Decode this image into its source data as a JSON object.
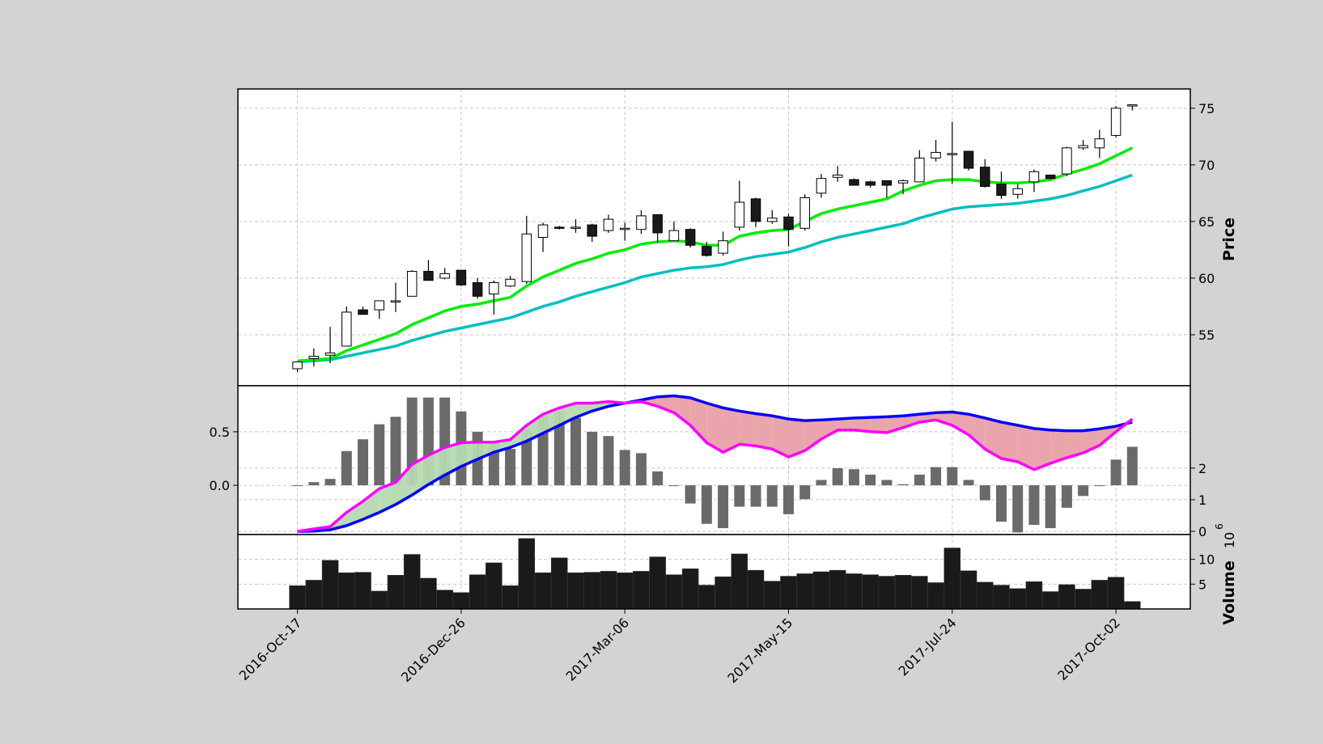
{
  "chart_data": {
    "type": "candlestick",
    "x": [
      "2016-Oct-17",
      "2016-Oct-24",
      "2016-Oct-31",
      "2016-Nov-07",
      "2016-Nov-14",
      "2016-Nov-21",
      "2016-Nov-28",
      "2016-Dec-05",
      "2016-Dec-12",
      "2016-Dec-19",
      "2016-Dec-26",
      "2017-Jan-02",
      "2017-Jan-09",
      "2017-Jan-16",
      "2017-Jan-23",
      "2017-Jan-30",
      "2017-Feb-06",
      "2017-Feb-13",
      "2017-Feb-20",
      "2017-Feb-27",
      "2017-Mar-06",
      "2017-Mar-13",
      "2017-Mar-20",
      "2017-Mar-27",
      "2017-Apr-03",
      "2017-Apr-10",
      "2017-Apr-17",
      "2017-Apr-24",
      "2017-May-01",
      "2017-May-08",
      "2017-May-15",
      "2017-May-22",
      "2017-May-29",
      "2017-Jun-05",
      "2017-Jun-12",
      "2017-Jun-19",
      "2017-Jun-26",
      "2017-Jul-03",
      "2017-Jul-10",
      "2017-Jul-17",
      "2017-Jul-24",
      "2017-Jul-31",
      "2017-Aug-07",
      "2017-Aug-14",
      "2017-Aug-21",
      "2017-Aug-28",
      "2017-Sep-04",
      "2017-Sep-11",
      "2017-Sep-18",
      "2017-Sep-25",
      "2017-Oct-02",
      "2017-Oct-09"
    ],
    "xticks": [
      "2016-Oct-17",
      "2016-Dec-26",
      "2017-Mar-06",
      "2017-May-15",
      "2017-Jul-24",
      "2017-Oct-02"
    ],
    "candles": [
      [
        52.0,
        52.6,
        51.7,
        52.6
      ],
      [
        52.9,
        53.8,
        52.2,
        53.1
      ],
      [
        53.2,
        55.7,
        52.5,
        53.4
      ],
      [
        54.0,
        57.5,
        54.0,
        57.0
      ],
      [
        57.2,
        57.5,
        56.8,
        56.8
      ],
      [
        57.2,
        58.0,
        56.4,
        58.0
      ],
      [
        57.9,
        59.6,
        57.0,
        58.0
      ],
      [
        58.4,
        60.7,
        58.4,
        60.6
      ],
      [
        60.6,
        61.6,
        59.8,
        59.8
      ],
      [
        60.0,
        60.9,
        59.9,
        60.4
      ],
      [
        60.7,
        60.7,
        59.3,
        59.4
      ],
      [
        59.6,
        60.0,
        58.2,
        58.4
      ],
      [
        58.6,
        59.8,
        56.8,
        59.6
      ],
      [
        59.3,
        60.2,
        59.2,
        59.9
      ],
      [
        59.7,
        65.5,
        59.5,
        63.9
      ],
      [
        63.6,
        64.9,
        62.3,
        64.7
      ],
      [
        64.5,
        64.6,
        64.3,
        64.4
      ],
      [
        64.4,
        65.2,
        64.0,
        64.5
      ],
      [
        64.7,
        64.8,
        63.2,
        63.7
      ],
      [
        64.2,
        65.6,
        64.0,
        65.2
      ],
      [
        64.4,
        64.9,
        63.3,
        64.4
      ],
      [
        64.3,
        66.0,
        63.9,
        65.5
      ],
      [
        65.6,
        65.6,
        63.1,
        64.0
      ],
      [
        63.3,
        65.0,
        63.3,
        64.2
      ],
      [
        64.3,
        64.4,
        62.7,
        62.9
      ],
      [
        62.8,
        63.2,
        61.9,
        62.0
      ],
      [
        62.2,
        64.1,
        62.0,
        63.3
      ],
      [
        64.5,
        68.6,
        64.2,
        66.7
      ],
      [
        67.0,
        67.1,
        64.5,
        65.0
      ],
      [
        65.0,
        66.0,
        64.8,
        65.3
      ],
      [
        65.4,
        65.7,
        62.8,
        64.3
      ],
      [
        64.4,
        67.4,
        64.2,
        67.1
      ],
      [
        67.5,
        69.2,
        67.1,
        68.8
      ],
      [
        68.9,
        69.9,
        68.5,
        69.1
      ],
      [
        68.7,
        68.8,
        68.2,
        68.2
      ],
      [
        68.5,
        68.6,
        68.0,
        68.2
      ],
      [
        68.6,
        68.6,
        67.1,
        68.2
      ],
      [
        68.4,
        68.7,
        67.4,
        68.6
      ],
      [
        68.5,
        71.3,
        68.5,
        70.6
      ],
      [
        70.6,
        72.2,
        70.3,
        71.1
      ],
      [
        71.0,
        73.8,
        68.3,
        71.0
      ],
      [
        71.2,
        71.2,
        69.5,
        69.7
      ],
      [
        69.8,
        70.5,
        68.0,
        68.1
      ],
      [
        68.3,
        69.4,
        67.0,
        67.3
      ],
      [
        67.4,
        68.3,
        67.0,
        67.9
      ],
      [
        68.5,
        69.6,
        67.6,
        69.4
      ],
      [
        69.1,
        69.1,
        68.7,
        68.8
      ],
      [
        69.2,
        71.6,
        69.0,
        71.5
      ],
      [
        71.5,
        72.2,
        71.3,
        71.7
      ],
      [
        71.5,
        73.1,
        70.6,
        72.3
      ],
      [
        72.6,
        75.2,
        72.4,
        75.0
      ],
      [
        75.3,
        75.3,
        74.8,
        75.3
      ]
    ],
    "ma_green": [
      52.7,
      52.8,
      52.9,
      53.6,
      54.1,
      54.6,
      55.1,
      55.9,
      56.5,
      57.1,
      57.5,
      57.7,
      58.0,
      58.3,
      59.3,
      60.1,
      60.7,
      61.3,
      61.7,
      62.2,
      62.5,
      63.0,
      63.2,
      63.3,
      63.2,
      62.9,
      62.9,
      63.7,
      64.0,
      64.2,
      64.3,
      65.0,
      65.7,
      66.1,
      66.4,
      66.7,
      67.0,
      67.7,
      68.2,
      68.6,
      68.7,
      68.7,
      68.5,
      68.4,
      68.4,
      68.5,
      68.7,
      69.2,
      69.6,
      70.1,
      70.8,
      71.5
    ],
    "ma_cyan": [
      52.6,
      52.7,
      52.8,
      53.1,
      53.4,
      53.7,
      54.0,
      54.5,
      54.9,
      55.3,
      55.6,
      55.9,
      56.2,
      56.5,
      57.0,
      57.5,
      57.9,
      58.4,
      58.8,
      59.2,
      59.6,
      60.1,
      60.4,
      60.7,
      60.9,
      61.0,
      61.2,
      61.6,
      61.9,
      62.1,
      62.3,
      62.7,
      63.2,
      63.6,
      63.9,
      64.2,
      64.5,
      64.8,
      65.3,
      65.7,
      66.1,
      66.3,
      66.4,
      66.5,
      66.6,
      66.8,
      67.0,
      67.3,
      67.7,
      68.1,
      68.6,
      69.1
    ],
    "macd": [
      0.0,
      0.08,
      0.15,
      0.6,
      0.95,
      1.35,
      1.55,
      2.12,
      2.4,
      2.65,
      2.8,
      2.82,
      2.82,
      2.9,
      3.35,
      3.7,
      3.9,
      4.05,
      4.05,
      4.1,
      4.05,
      4.1,
      3.95,
      3.75,
      3.35,
      2.8,
      2.5,
      2.75,
      2.7,
      2.6,
      2.35,
      2.55,
      2.92,
      3.2,
      3.2,
      3.15,
      3.12,
      3.28,
      3.45,
      3.52,
      3.35,
      3.05,
      2.6,
      2.3,
      2.2,
      1.95,
      2.15,
      2.33,
      2.48,
      2.72,
      3.15,
      3.55
    ],
    "signal": [
      0.0,
      0.01,
      0.05,
      0.18,
      0.38,
      0.6,
      0.85,
      1.15,
      1.48,
      1.78,
      2.05,
      2.28,
      2.5,
      2.65,
      2.85,
      3.1,
      3.35,
      3.6,
      3.8,
      3.95,
      4.05,
      4.15,
      4.25,
      4.28,
      4.22,
      4.05,
      3.9,
      3.8,
      3.72,
      3.65,
      3.55,
      3.5,
      3.52,
      3.55,
      3.58,
      3.6,
      3.62,
      3.65,
      3.7,
      3.75,
      3.77,
      3.7,
      3.58,
      3.45,
      3.35,
      3.25,
      3.2,
      3.18,
      3.18,
      3.24,
      3.32,
      3.45
    ],
    "macd_hist": [
      0.0,
      0.03,
      0.06,
      0.32,
      0.43,
      0.57,
      0.64,
      0.82,
      0.82,
      0.82,
      0.69,
      0.5,
      0.4,
      0.34,
      0.52,
      0.64,
      0.69,
      0.63,
      0.5,
      0.46,
      0.33,
      0.3,
      0.13,
      0.0,
      -0.17,
      -0.36,
      -0.4,
      -0.2,
      -0.2,
      -0.2,
      -0.27,
      -0.13,
      0.05,
      0.16,
      0.15,
      0.1,
      0.05,
      0.01,
      0.1,
      0.17,
      0.17,
      0.05,
      -0.14,
      -0.34,
      -0.44,
      -0.37,
      -0.4,
      -0.21,
      -0.1,
      0.0,
      0.24,
      0.36
    ],
    "volume": [
      4.7,
      5.8,
      9.8,
      7.3,
      7.4,
      3.6,
      6.8,
      11.0,
      6.2,
      3.8,
      3.3,
      6.9,
      9.3,
      4.7,
      14.2,
      7.3,
      10.3,
      7.3,
      7.4,
      7.6,
      7.3,
      7.6,
      10.5,
      6.9,
      8.1,
      4.8,
      6.5,
      11.1,
      7.8,
      5.6,
      6.6,
      7.1,
      7.5,
      7.8,
      7.1,
      6.9,
      6.6,
      6.8,
      6.6,
      5.3,
      12.3,
      7.7,
      5.4,
      4.8,
      4.1,
      5.5,
      3.5,
      4.9,
      4.0,
      5.8,
      6.4,
      1.5
    ],
    "ylabel_price": "Price",
    "ylabel_volume": "Volume",
    "volume_exponent_base": "10",
    "volume_exponent": "6",
    "price_ticks": [
      55,
      60,
      65,
      70,
      75
    ],
    "price_ylim": [
      50.5,
      76.7
    ],
    "hist_ticks": [
      0.0,
      0.5
    ],
    "hist_ylim": [
      -0.46,
      0.93
    ],
    "macd_ticks": [
      0,
      1,
      2
    ],
    "macd_ylim": [
      -0.1,
      4.6
    ],
    "volume_ticks": [
      5,
      10
    ],
    "volume_ylim": [
      0,
      15.0
    ],
    "grid": true,
    "colors": {
      "background": "#d3d3d3",
      "up_body": "#ffffff",
      "down_body": "#1a1a1a",
      "ma_green": "#00ee00",
      "ma_cyan": "#00bfbf",
      "macd_line": "#ff00ff",
      "signal_line": "#0000ff",
      "fill_positive": "#b5dab1",
      "fill_negative": "#e9a0a8",
      "hist_bar": "#6a6a6a",
      "volume_bar": "#1a1a1a",
      "grid": "#c8c8c8"
    }
  }
}
